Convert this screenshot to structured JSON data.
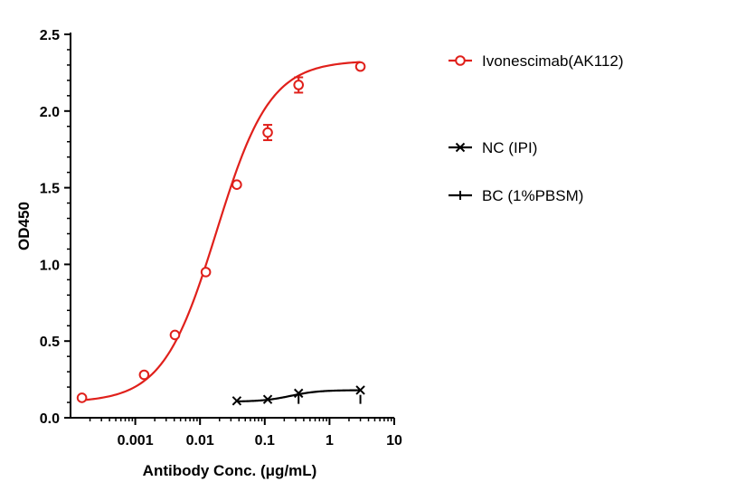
{
  "chart_data": {
    "type": "line",
    "xlabel": "Antibody Conc. (μg/mL)",
    "ylabel": "OD450",
    "x_scale": "log",
    "xlim": [
      0.0001,
      10
    ],
    "ylim": [
      0,
      2.5
    ],
    "x_ticks": [
      {
        "value": 0.001,
        "label": "0.001"
      },
      {
        "value": 0.01,
        "label": "0.01"
      },
      {
        "value": 0.1,
        "label": "0.1"
      },
      {
        "value": 1,
        "label": "1"
      },
      {
        "value": 10,
        "label": "10"
      }
    ],
    "y_ticks": [
      {
        "value": 0,
        "label": "0.0"
      },
      {
        "value": 0.5,
        "label": "0.5"
      },
      {
        "value": 1.0,
        "label": "1.0"
      },
      {
        "value": 1.5,
        "label": "1.5"
      },
      {
        "value": 2.0,
        "label": "2.0"
      },
      {
        "value": 2.5,
        "label": "2.5"
      }
    ],
    "grid": false,
    "legend_position": "right",
    "series": [
      {
        "name": "Ivonescimab(AK112)",
        "color": "#e0201b",
        "marker": "circle",
        "points": [
          {
            "x": 0.00015,
            "y": 0.13,
            "err": 0
          },
          {
            "x": 0.00137,
            "y": 0.28,
            "err": 0
          },
          {
            "x": 0.0041,
            "y": 0.54,
            "err": 0
          },
          {
            "x": 0.0123,
            "y": 0.95,
            "err": 0
          },
          {
            "x": 0.037,
            "y": 1.52,
            "err": 0
          },
          {
            "x": 0.111,
            "y": 1.86,
            "err": 0.05
          },
          {
            "x": 0.333,
            "y": 2.17,
            "err": 0.05
          },
          {
            "x": 3.0,
            "y": 2.29,
            "err": 0
          }
        ],
        "fit": {
          "bottom": 0.1,
          "top": 2.33,
          "ec50": 0.018,
          "hill": 1.05
        }
      },
      {
        "name": "NC (IPI)",
        "color": "#000000",
        "marker": "x",
        "points": [
          {
            "x": 0.037,
            "y": 0.11
          },
          {
            "x": 0.111,
            "y": 0.12
          },
          {
            "x": 0.333,
            "y": 0.16
          },
          {
            "x": 3.0,
            "y": 0.18
          }
        ],
        "fit": {
          "bottom": 0.105,
          "top": 0.18,
          "ec50": 0.25,
          "hill": 2.0
        }
      },
      {
        "name": "BC (1%PBSM)",
        "color": "#000000",
        "marker": "vline",
        "points": [
          {
            "x": 0.333,
            "y": 0.12
          },
          {
            "x": 3.0,
            "y": 0.12
          }
        ]
      }
    ]
  }
}
